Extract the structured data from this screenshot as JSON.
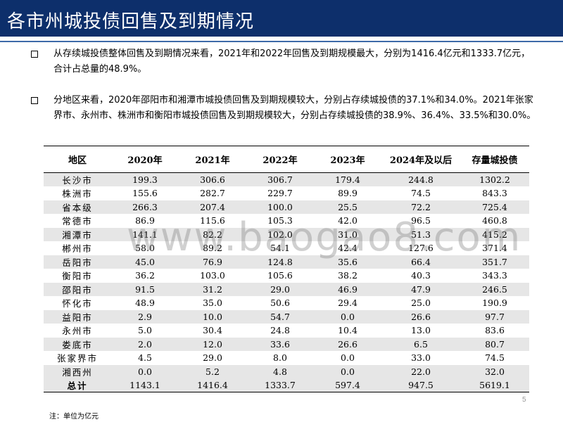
{
  "header": {
    "title": "各市州城投债回售及到期情况"
  },
  "bullets": [
    {
      "text": "从存续城投债整体回售及到期情况来看，2021年和2022年回售及到期规模最大，分别为1416.4亿元和1333.7亿元，合计占总量的48.9%。"
    },
    {
      "text": "分地区来看，2020年邵阳市和湘潭市城投债回售及到期规模较大，分别占存续城投债的37.1%和34.0%。2021年张家界市、永州市、株洲市和衡阳市城投债回售及到期规模较大，分别占存续城投债的38.9%、36.4%、33.5%和30.0%。"
    }
  ],
  "table": {
    "headers": [
      "地区",
      "2020年",
      "2021年",
      "2022年",
      "2023年",
      "2024年及以后",
      "存量城投债"
    ],
    "rows": [
      [
        "长沙市",
        "199.3",
        "306.6",
        "306.7",
        "179.4",
        "244.8",
        "1302.2"
      ],
      [
        "株洲市",
        "155.6",
        "282.7",
        "229.7",
        "89.9",
        "74.5",
        "843.3"
      ],
      [
        "省本级",
        "266.3",
        "207.4",
        "100.0",
        "25.5",
        "72.2",
        "725.4"
      ],
      [
        "常德市",
        "86.9",
        "115.6",
        "105.3",
        "42.0",
        "96.5",
        "460.8"
      ],
      [
        "湘潭市",
        "141.1",
        "82.2",
        "102.0",
        "31.0",
        "51.3",
        "415.2"
      ],
      [
        "郴州市",
        "58.0",
        "89.2",
        "54.1",
        "42.4",
        "127.6",
        "371.4"
      ],
      [
        "岳阳市",
        "45.0",
        "76.9",
        "124.8",
        "35.6",
        "66.4",
        "351.7"
      ],
      [
        "衡阳市",
        "36.2",
        "103.0",
        "105.6",
        "38.2",
        "40.3",
        "343.3"
      ],
      [
        "邵阳市",
        "91.5",
        "31.2",
        "29.0",
        "46.9",
        "47.9",
        "246.5"
      ],
      [
        "怀化市",
        "48.9",
        "35.0",
        "50.6",
        "29.4",
        "25.0",
        "190.9"
      ],
      [
        "益阳市",
        "2.9",
        "10.0",
        "54.7",
        "0.0",
        "26.6",
        "97.7"
      ],
      [
        "永州市",
        "5.0",
        "30.4",
        "24.8",
        "10.4",
        "13.0",
        "83.6"
      ],
      [
        "娄底市",
        "2.0",
        "12.0",
        "33.6",
        "26.6",
        "6.5",
        "80.7"
      ],
      [
        "张家界市",
        "4.5",
        "29.0",
        "8.0",
        "0.0",
        "33.0",
        "74.5"
      ],
      [
        "湘西州",
        "0.0",
        "5.2",
        "4.8",
        "0.0",
        "22.0",
        "32.0"
      ]
    ],
    "total": [
      "总计",
      "1143.1",
      "1416.4",
      "1333.7",
      "597.4",
      "947.5",
      "5619.1"
    ]
  },
  "watermark": "www.baogao8.com",
  "page_number": "5",
  "footnote": "注：单位为亿元"
}
